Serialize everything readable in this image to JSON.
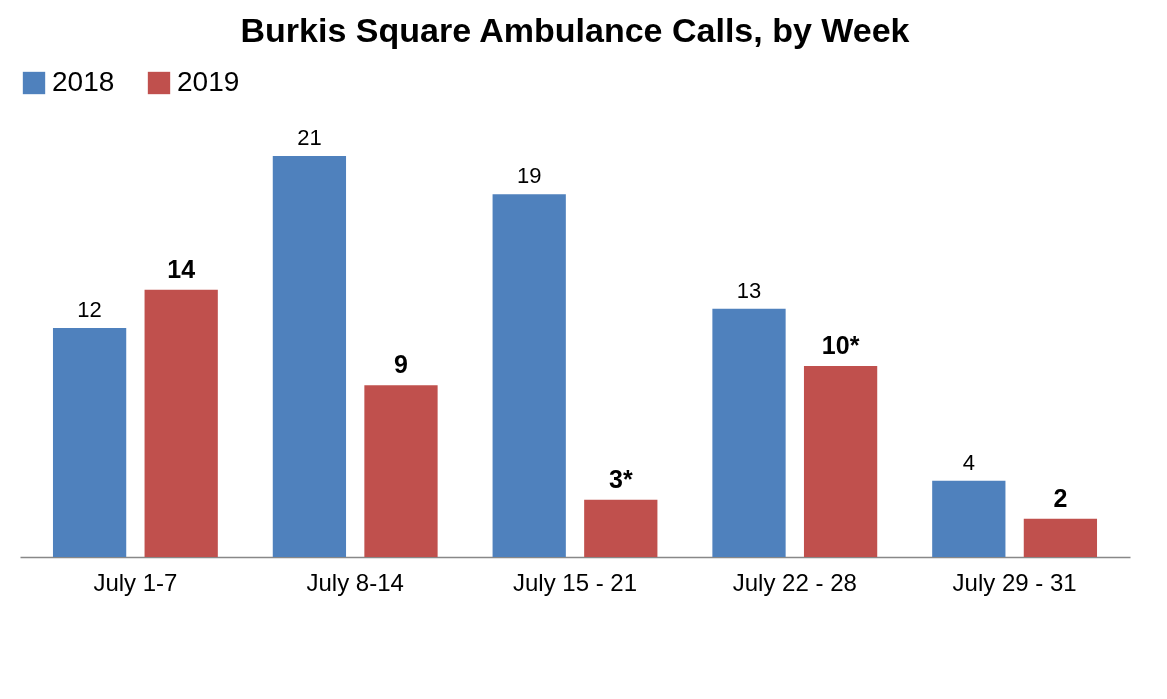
{
  "chart_data": {
    "type": "bar",
    "title": "Burkis Square Ambulance Calls, by Week",
    "categories": [
      "July 1-7",
      "July 8-14",
      "July 15 - 21",
      "July 22 - 28",
      "July 29 - 31"
    ],
    "series": [
      {
        "name": "2018",
        "color": "#4f81bd",
        "values": [
          12,
          21,
          19,
          13,
          4
        ]
      },
      {
        "name": "2019",
        "color": "#c0504d",
        "values": [
          14,
          9,
          3,
          10,
          2
        ],
        "value_labels": [
          "14",
          "9",
          "3*",
          "10*",
          "2"
        ]
      }
    ],
    "data_labels": true,
    "legend": "top",
    "grid": false
  }
}
